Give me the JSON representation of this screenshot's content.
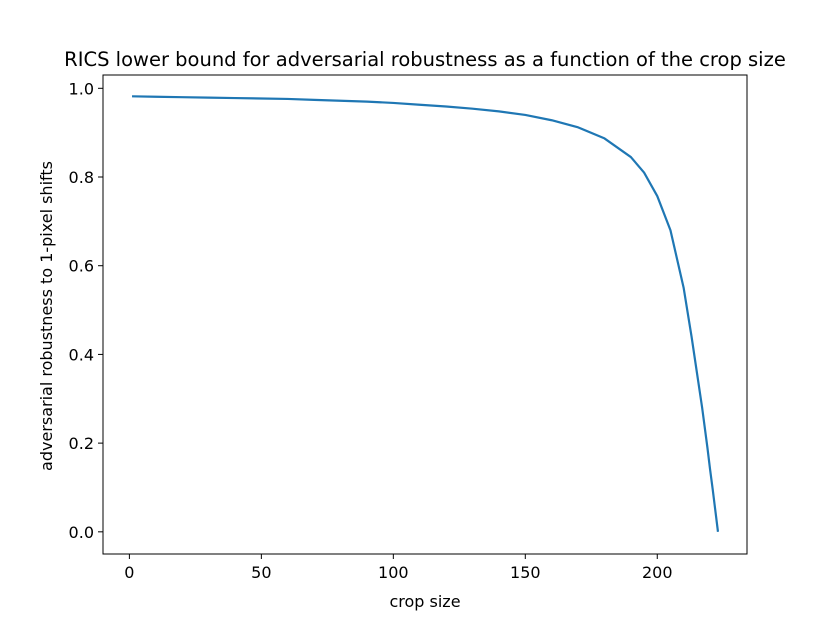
{
  "chart_data": {
    "type": "line",
    "title": "RICS lower bound for adversarial robustness as a function of the crop size",
    "xlabel": "crop size",
    "ylabel": "adversarial robustness to 1-pixel shifts",
    "xlim": [
      -10,
      234
    ],
    "ylim": [
      -0.05,
      1.03
    ],
    "xticks": [
      0,
      50,
      100,
      150,
      200
    ],
    "yticks": [
      0.0,
      0.2,
      0.4,
      0.6,
      0.8,
      1.0
    ],
    "xtick_labels": [
      "0",
      "50",
      "100",
      "150",
      "200"
    ],
    "ytick_labels": [
      "0.0",
      "0.2",
      "0.4",
      "0.6",
      "0.8",
      "1.0"
    ],
    "grid": false,
    "series": [
      {
        "color": "#1f77b4",
        "x": [
          1,
          10,
          20,
          30,
          40,
          50,
          60,
          70,
          80,
          90,
          100,
          110,
          120,
          130,
          140,
          150,
          160,
          170,
          180,
          190,
          195,
          200,
          205,
          210,
          213,
          215,
          217,
          219,
          220,
          221,
          222,
          223
        ],
        "y": [
          0.982,
          0.981,
          0.98,
          0.979,
          0.978,
          0.977,
          0.976,
          0.974,
          0.972,
          0.97,
          0.967,
          0.963,
          0.959,
          0.954,
          0.948,
          0.94,
          0.928,
          0.912,
          0.887,
          0.845,
          0.81,
          0.757,
          0.68,
          0.55,
          0.44,
          0.36,
          0.28,
          0.19,
          0.141,
          0.096,
          0.048,
          0.0
        ]
      }
    ]
  }
}
